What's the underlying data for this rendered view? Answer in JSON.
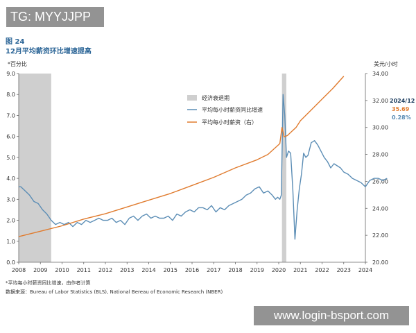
{
  "watermark": "TG: MYYJJPP",
  "url_watermark": "www.login-bsport.com",
  "chart_data": {
    "type": "line",
    "figure_number": "图 24",
    "title": "12月平均薪资环比增速提高",
    "left_axis_unit": "*百分比",
    "right_axis_unit": "美元/小时",
    "left_ylim": [
      0,
      9
    ],
    "right_ylim": [
      20,
      34
    ],
    "left_ticks": [
      "0.0",
      "1.0",
      "2.0",
      "3.0",
      "4.0",
      "5.0",
      "6.0",
      "7.0",
      "8.0",
      "9.0"
    ],
    "right_ticks": [
      "20.00",
      "22.00",
      "24.00",
      "26.00",
      "28.00",
      "30.00",
      "32.00",
      "34.00"
    ],
    "x_ticks": [
      "2008",
      "2009",
      "2010",
      "2011",
      "2012",
      "2013",
      "2014",
      "2015",
      "2016",
      "2017",
      "2018",
      "2019",
      "2020",
      "2021",
      "2022",
      "2023",
      "2024"
    ],
    "recessions": [
      {
        "start": 2008.0,
        "end": 2009.5
      },
      {
        "start": 2020.15,
        "end": 2020.35
      }
    ],
    "legend": {
      "recession": "经济衰退期",
      "growth": "平均每小时薪资同比增速",
      "wage": "平均每小时薪资（右）"
    },
    "annotation": {
      "date": "2024/12",
      "wage_value": "35.69",
      "growth_value": "0.28%"
    },
    "colors": {
      "growth": "#5b8db5",
      "wage": "#e07b2e",
      "recession": "#cfcfcf",
      "title": "#2a6496"
    },
    "series": [
      {
        "name": "平均每小时薪资同比增速",
        "axis": "left",
        "x": [
          2008.0,
          2008.1,
          2008.3,
          2008.5,
          2008.7,
          2008.9,
          2009.1,
          2009.3,
          2009.5,
          2009.7,
          2009.9,
          2010.1,
          2010.3,
          2010.5,
          2010.7,
          2010.9,
          2011.1,
          2011.3,
          2011.5,
          2011.7,
          2011.9,
          2012.1,
          2012.3,
          2012.5,
          2012.7,
          2012.9,
          2013.1,
          2013.3,
          2013.5,
          2013.7,
          2013.9,
          2014.1,
          2014.3,
          2014.5,
          2014.7,
          2014.9,
          2015.1,
          2015.3,
          2015.5,
          2015.7,
          2015.9,
          2016.1,
          2016.3,
          2016.5,
          2016.7,
          2016.9,
          2017.1,
          2017.3,
          2017.5,
          2017.7,
          2017.9,
          2018.1,
          2018.3,
          2018.5,
          2018.7,
          2018.9,
          2019.1,
          2019.3,
          2019.5,
          2019.7,
          2019.85,
          2019.95,
          2020.05,
          2020.12,
          2020.2,
          2020.28,
          2020.36,
          2020.45,
          2020.55,
          2020.65,
          2020.75,
          2020.85,
          2020.95,
          2021.05,
          2021.15,
          2021.25,
          2021.35,
          2021.5,
          2021.65,
          2021.8,
          2021.95,
          2022.1,
          2022.25,
          2022.4,
          2022.55,
          2022.7,
          2022.85,
          2023.0,
          2023.2,
          2023.4,
          2023.6,
          2023.8,
          2024.0,
          2024.2,
          2024.4,
          2024.6,
          2024.8,
          2025.0
        ],
        "values": [
          3.6,
          3.6,
          3.4,
          3.2,
          2.9,
          2.8,
          2.5,
          2.3,
          2.0,
          1.8,
          1.9,
          1.8,
          1.9,
          1.7,
          1.9,
          1.8,
          2.0,
          1.9,
          2.0,
          2.1,
          2.0,
          2.0,
          2.1,
          1.9,
          2.0,
          1.8,
          2.1,
          2.2,
          2.0,
          2.2,
          2.3,
          2.1,
          2.2,
          2.1,
          2.1,
          2.2,
          2.0,
          2.3,
          2.2,
          2.4,
          2.5,
          2.4,
          2.6,
          2.6,
          2.5,
          2.7,
          2.4,
          2.6,
          2.5,
          2.7,
          2.8,
          2.9,
          3.0,
          3.2,
          3.3,
          3.5,
          3.6,
          3.3,
          3.4,
          3.2,
          3.0,
          3.1,
          3.0,
          3.2,
          8.0,
          7.0,
          5.0,
          5.3,
          5.2,
          3.5,
          1.1,
          2.5,
          3.5,
          4.2,
          5.2,
          5.0,
          5.1,
          5.7,
          5.8,
          5.6,
          5.3,
          5.0,
          4.8,
          4.5,
          4.7,
          4.6,
          4.5,
          4.3,
          4.2,
          4.0,
          3.9,
          3.8,
          3.6,
          3.9,
          4.0,
          4.0,
          3.9,
          4.0
        ]
      },
      {
        "name": "平均每小时薪资（右）",
        "axis": "right",
        "x": [
          2008.0,
          2009.0,
          2010.0,
          2011.0,
          2012.0,
          2013.0,
          2014.0,
          2015.0,
          2016.0,
          2017.0,
          2018.0,
          2019.0,
          2019.5,
          2020.05,
          2020.15,
          2020.25,
          2020.4,
          2020.6,
          2020.8,
          2021.0,
          2021.5,
          2022.0,
          2022.5,
          2023.0
        ],
        "values": [
          21.9,
          22.3,
          22.7,
          23.2,
          23.6,
          24.1,
          24.6,
          25.1,
          25.7,
          26.3,
          27.0,
          27.6,
          28.0,
          28.8,
          30.0,
          29.3,
          29.4,
          29.7,
          30.0,
          30.5,
          31.3,
          32.1,
          32.9,
          33.8
        ]
      }
    ]
  },
  "footnotes": {
    "note": "*平均每小时薪资同比增速，由作者计算",
    "source": "数据来源：Bureau of Labor Statistics (BLS), National Bereau of Economic Research (NBER)"
  }
}
